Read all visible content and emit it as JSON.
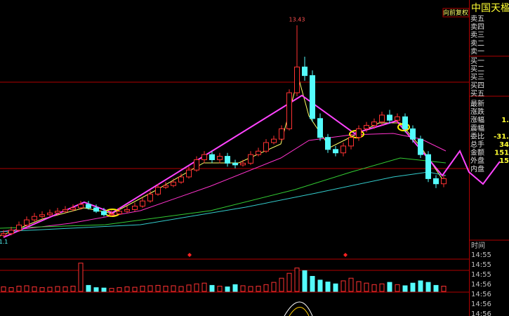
{
  "chart_data": {
    "type": "candlestick",
    "adjust_label": "向前复权",
    "ylim": [
      1.0,
      14.9
    ],
    "open": [
      1.2,
      1.3,
      1.5,
      1.8,
      2.1,
      2.3,
      2.4,
      2.5,
      2.6,
      2.7,
      2.8,
      3.0,
      2.8,
      2.6,
      2.4,
      2.45,
      2.6,
      2.7,
      2.9,
      3.2,
      3.6,
      4.0,
      4.1,
      4.3,
      4.6,
      5.0,
      5.6,
      5.9,
      5.6,
      5.8,
      5.4,
      5.3,
      5.4,
      5.9,
      6.1,
      6.6,
      6.8,
      7.4,
      9.5,
      11.0,
      10.5,
      8.0,
      6.9,
      6.2,
      6.0,
      6.4,
      6.9,
      7.4,
      7.6,
      7.8,
      8.2,
      7.9,
      8.1,
      7.4,
      6.8,
      5.9,
      4.5,
      4.2
    ],
    "high": [
      1.5,
      1.7,
      2.0,
      2.3,
      2.5,
      2.6,
      2.7,
      2.8,
      2.9,
      3.0,
      3.2,
      3.2,
      3.0,
      2.8,
      2.65,
      2.8,
      2.9,
      3.1,
      3.4,
      3.8,
      4.2,
      4.3,
      4.5,
      4.8,
      5.2,
      5.8,
      6.1,
      6.1,
      6.0,
      6.0,
      5.6,
      5.6,
      6.1,
      6.3,
      6.8,
      7.0,
      7.6,
      9.7,
      13.43,
      11.6,
      10.8,
      8.3,
      7.1,
      6.4,
      6.6,
      7.1,
      7.6,
      7.8,
      8.0,
      8.4,
      8.5,
      8.3,
      8.3,
      7.6,
      7.0,
      6.1,
      4.7,
      4.7
    ],
    "low": [
      1.1,
      1.2,
      1.4,
      1.7,
      2.0,
      2.2,
      2.3,
      2.4,
      2.5,
      2.6,
      2.7,
      2.7,
      2.5,
      2.3,
      2.3,
      2.4,
      2.5,
      2.6,
      2.8,
      3.1,
      3.5,
      3.9,
      4.0,
      4.2,
      4.5,
      4.9,
      5.4,
      5.4,
      5.4,
      5.2,
      5.1,
      5.2,
      5.3,
      5.8,
      6.0,
      6.5,
      6.7,
      7.3,
      9.3,
      10.2,
      7.8,
      6.7,
      6.0,
      5.8,
      5.8,
      6.2,
      6.7,
      7.2,
      7.4,
      7.6,
      7.7,
      7.7,
      7.2,
      6.6,
      5.7,
      4.3,
      3.95,
      4.0
    ],
    "close": [
      1.3,
      1.5,
      1.8,
      2.1,
      2.3,
      2.4,
      2.5,
      2.6,
      2.7,
      2.8,
      3.0,
      2.8,
      2.6,
      2.4,
      2.45,
      2.6,
      2.7,
      2.9,
      3.2,
      3.6,
      4.0,
      4.1,
      4.3,
      4.6,
      5.0,
      5.6,
      5.9,
      5.6,
      5.8,
      5.4,
      5.3,
      5.4,
      5.9,
      6.1,
      6.6,
      6.8,
      7.4,
      9.5,
      11.0,
      10.5,
      8.0,
      6.9,
      6.2,
      6.0,
      6.4,
      6.9,
      7.4,
      7.6,
      7.8,
      8.2,
      7.9,
      8.1,
      7.4,
      6.8,
      5.9,
      4.5,
      4.2,
      4.5
    ],
    "volume": [
      12,
      10,
      14,
      15,
      12,
      10,
      11,
      13,
      12,
      14,
      75,
      16,
      10,
      9,
      8,
      10,
      12,
      11,
      14,
      15,
      16,
      14,
      15,
      13,
      17,
      20,
      22,
      16,
      14,
      12,
      18,
      15,
      13,
      14,
      18,
      24,
      35,
      48,
      62,
      55,
      40,
      30,
      25,
      20,
      28,
      35,
      26,
      22,
      18,
      20,
      24,
      18,
      15,
      22,
      28,
      24,
      16,
      14
    ],
    "volume_lim": [
      0,
      80
    ]
  },
  "sidebar": {
    "stock_name": "中国天楹",
    "labels": [
      "卖五",
      "卖四",
      "卖三",
      "卖二",
      "卖一",
      "买一",
      "买二",
      "买三",
      "买四",
      "买五",
      "最新",
      "涨跌",
      "涨幅",
      "震幅",
      "委比",
      "总手",
      "金额",
      "外盘",
      "内盘"
    ],
    "values": [
      {
        "row": 12,
        "text": "1."
      },
      {
        "row": 14,
        "text": "-31."
      },
      {
        "row": 15,
        "text": "34"
      },
      {
        "row": 16,
        "text": "151"
      },
      {
        "row": 17,
        "text": "15"
      }
    ]
  },
  "time_panel": {
    "header": "时间",
    "times": [
      "14:55",
      "14:55",
      "14:55",
      "14:56",
      "14:56",
      "14:56",
      "14:56"
    ]
  }
}
